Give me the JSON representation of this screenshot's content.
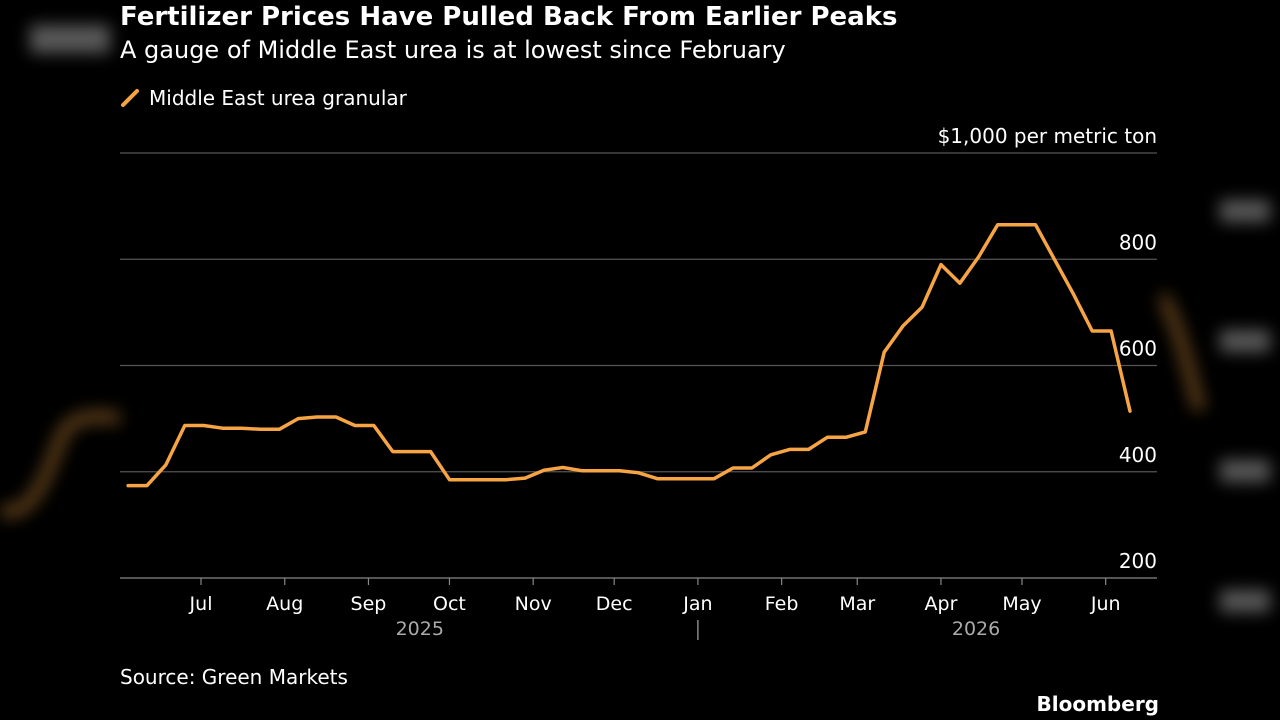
{
  "header": {
    "title": "Fertilizer Prices Have Pulled Back From Earlier Peaks",
    "subtitle": "A gauge of Middle East urea is at lowest since February"
  },
  "footer": {
    "source": "Source: Green Markets",
    "brand": "Bloomberg"
  },
  "colors": {
    "line": "#f6a444",
    "grid": "#555555",
    "text": "#ffffff",
    "background": "#000000"
  },
  "chart_data": {
    "type": "line",
    "unit_label": "$1,000 per metric ton",
    "ylim": [
      200,
      1000
    ],
    "yticks": [
      {
        "value": 200,
        "label": "200"
      },
      {
        "value": 400,
        "label": "400"
      },
      {
        "value": 600,
        "label": "600"
      },
      {
        "value": 800,
        "label": "800"
      },
      {
        "value": 1000,
        "label": "$1,000 per metric ton"
      }
    ],
    "xlim": [
      "2025-06-01",
      "2026-06-20"
    ],
    "xticks": [
      {
        "date": "2025-07-01",
        "label": "Jul"
      },
      {
        "date": "2025-08-01",
        "label": "Aug"
      },
      {
        "date": "2025-09-01",
        "label": "Sep"
      },
      {
        "date": "2025-10-01",
        "label": "Oct"
      },
      {
        "date": "2025-11-01",
        "label": "Nov"
      },
      {
        "date": "2025-12-01",
        "label": "Dec"
      },
      {
        "date": "2026-01-01",
        "label": "Jan"
      },
      {
        "date": "2026-02-01",
        "label": "Feb"
      },
      {
        "date": "2026-03-01",
        "label": "Mar"
      },
      {
        "date": "2026-04-01",
        "label": "Apr"
      },
      {
        "date": "2026-05-01",
        "label": "May"
      },
      {
        "date": "2026-06-01",
        "label": "Jun"
      }
    ],
    "year_labels": [
      {
        "label": "2025",
        "date": "2025-09-20"
      },
      {
        "label": "2026",
        "date": "2026-04-14"
      }
    ],
    "year_separator": "2026-01-01",
    "legend_position": "top-left",
    "grid": true,
    "series": [
      {
        "name": "Middle East urea granular",
        "color": "#f6a444",
        "points": [
          [
            "2025-06-04",
            374
          ],
          [
            "2025-06-11",
            374
          ],
          [
            "2025-06-18",
            413
          ],
          [
            "2025-06-25",
            487
          ],
          [
            "2025-07-02",
            487
          ],
          [
            "2025-07-09",
            482
          ],
          [
            "2025-07-16",
            482
          ],
          [
            "2025-07-23",
            480
          ],
          [
            "2025-07-30",
            480
          ],
          [
            "2025-08-06",
            500
          ],
          [
            "2025-08-13",
            503
          ],
          [
            "2025-08-20",
            503
          ],
          [
            "2025-08-27",
            487
          ],
          [
            "2025-09-03",
            487
          ],
          [
            "2025-09-10",
            438
          ],
          [
            "2025-09-17",
            438
          ],
          [
            "2025-09-24",
            438
          ],
          [
            "2025-10-01",
            385
          ],
          [
            "2025-10-08",
            385
          ],
          [
            "2025-10-15",
            385
          ],
          [
            "2025-10-22",
            385
          ],
          [
            "2025-10-29",
            388
          ],
          [
            "2025-11-05",
            403
          ],
          [
            "2025-11-12",
            408
          ],
          [
            "2025-11-19",
            402
          ],
          [
            "2025-11-26",
            402
          ],
          [
            "2025-12-03",
            402
          ],
          [
            "2025-12-10",
            398
          ],
          [
            "2025-12-17",
            387
          ],
          [
            "2025-12-24",
            387
          ],
          [
            "2025-12-31",
            387
          ],
          [
            "2026-01-07",
            387
          ],
          [
            "2026-01-14",
            407
          ],
          [
            "2026-01-21",
            407
          ],
          [
            "2026-01-28",
            432
          ],
          [
            "2026-02-04",
            442
          ],
          [
            "2026-02-11",
            442
          ],
          [
            "2026-02-18",
            465
          ],
          [
            "2026-02-25",
            465
          ],
          [
            "2026-03-04",
            475
          ],
          [
            "2026-03-11",
            625
          ],
          [
            "2026-03-18",
            675
          ],
          [
            "2026-03-25",
            710
          ],
          [
            "2026-04-01",
            790
          ],
          [
            "2026-04-08",
            755
          ],
          [
            "2026-04-15",
            805
          ],
          [
            "2026-04-22",
            865
          ],
          [
            "2026-04-29",
            865
          ],
          [
            "2026-05-06",
            865
          ],
          [
            "2026-05-13",
            800
          ],
          [
            "2026-05-20",
            735
          ],
          [
            "2026-05-27",
            665
          ],
          [
            "2026-06-03",
            665
          ],
          [
            "2026-06-10",
            514
          ]
        ]
      }
    ]
  }
}
